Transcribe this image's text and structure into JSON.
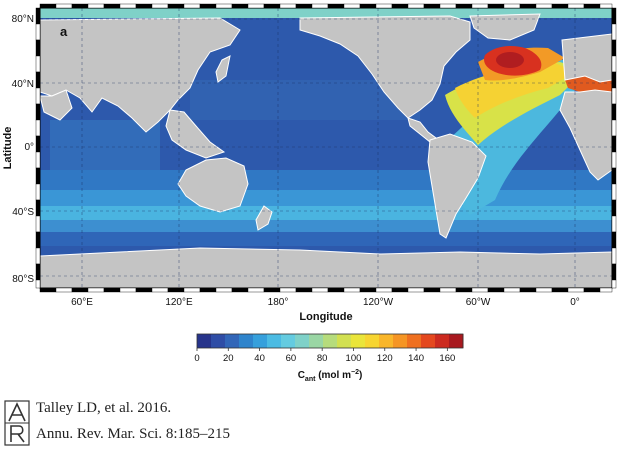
{
  "panel_label": "a",
  "axes": {
    "x_label": "Longitude",
    "y_label": "Latitude",
    "x_ticks": [
      "60°E",
      "120°E",
      "180°",
      "120°W",
      "60°W",
      "0°"
    ],
    "y_ticks": [
      "80°N",
      "40°N",
      "0°",
      "40°S",
      "80°S"
    ]
  },
  "colorbar": {
    "label_main": "C",
    "label_sub": "ant",
    "label_units": " (mol m",
    "label_exp": "−2",
    "label_close": ")",
    "ticks": [
      "0",
      "20",
      "40",
      "60",
      "80",
      "100",
      "120",
      "140",
      "160"
    ],
    "range": [
      0,
      170
    ],
    "colors": [
      "#27348b",
      "#2f4da6",
      "#3266b8",
      "#2f84cc",
      "#36a0dc",
      "#4bbbe3",
      "#64cbe0",
      "#7fd1c8",
      "#9ad6a4",
      "#b6dc7c",
      "#d2e051",
      "#eae53a",
      "#f7d531",
      "#f9b62a",
      "#f59524",
      "#ef7020",
      "#e4481e",
      "#cc2a1f",
      "#a8191f"
    ]
  },
  "map_colors": {
    "land": "#c4c4c4",
    "ocean_background": "#2d59ac"
  },
  "citation": {
    "line1": "Talley LD, et al. 2016.",
    "line2": "Annu. Rev. Mar. Sci. 8:185–215"
  }
}
